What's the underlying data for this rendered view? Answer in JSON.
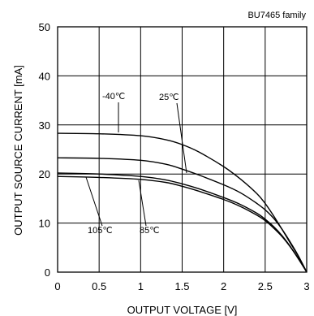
{
  "chart_data": {
    "type": "line",
    "title": "BU7465 family",
    "xlabel": "OUTPUT VOLTAGE [V]",
    "ylabel": "OUTPUT SOURCE CURRENT [mA]",
    "xlim": [
      0,
      3
    ],
    "ylim": [
      0,
      50
    ],
    "xticks": [
      "0",
      "0.5",
      "1",
      "1.5",
      "2",
      "2.5",
      "3"
    ],
    "yticks": [
      "0",
      "10",
      "20",
      "30",
      "40",
      "50"
    ],
    "grid": true,
    "legend": "none",
    "series": [
      {
        "name": "-40℃",
        "x": [
          0,
          0.5,
          1.0,
          1.3,
          1.5,
          1.7,
          2.0,
          2.2,
          2.4,
          2.5,
          2.6,
          2.7,
          2.8,
          2.9,
          3.0
        ],
        "y": [
          28.3,
          28.2,
          27.8,
          27.0,
          26.0,
          24.5,
          21.5,
          19.0,
          16.0,
          14.0,
          11.5,
          8.8,
          6.0,
          3.2,
          0
        ]
      },
      {
        "name": "25℃",
        "x": [
          0,
          0.5,
          1.0,
          1.3,
          1.5,
          1.7,
          2.0,
          2.2,
          2.4,
          2.5,
          2.6,
          2.7,
          2.8,
          2.9,
          3.0
        ],
        "y": [
          23.3,
          23.2,
          22.8,
          22.0,
          21.0,
          19.8,
          17.8,
          16.2,
          14.0,
          12.7,
          11.0,
          8.8,
          6.2,
          3.3,
          0
        ]
      },
      {
        "name": "85℃",
        "x": [
          0,
          0.5,
          1.0,
          1.3,
          1.5,
          1.7,
          2.0,
          2.2,
          2.4,
          2.5,
          2.6,
          2.7,
          2.8,
          2.9,
          3.0
        ],
        "y": [
          20.2,
          20.0,
          19.5,
          18.8,
          18.0,
          17.0,
          15.2,
          13.8,
          12.0,
          10.8,
          9.3,
          7.5,
          5.3,
          2.8,
          0
        ]
      },
      {
        "name": "105℃",
        "x": [
          0,
          0.5,
          1.0,
          1.3,
          1.5,
          1.7,
          2.0,
          2.2,
          2.4,
          2.5,
          2.6,
          2.7,
          2.8,
          2.9,
          3.0
        ],
        "y": [
          19.5,
          19.3,
          18.9,
          18.3,
          17.5,
          16.5,
          14.8,
          13.4,
          11.6,
          10.5,
          9.0,
          7.3,
          5.2,
          2.7,
          0
        ]
      }
    ],
    "annotations": [
      {
        "text": "-40℃",
        "series": "-40℃"
      },
      {
        "text": "25℃",
        "series": "25℃"
      },
      {
        "text": "105℃",
        "series": "105℃"
      },
      {
        "text": "85℃",
        "series": "85℃"
      }
    ]
  }
}
